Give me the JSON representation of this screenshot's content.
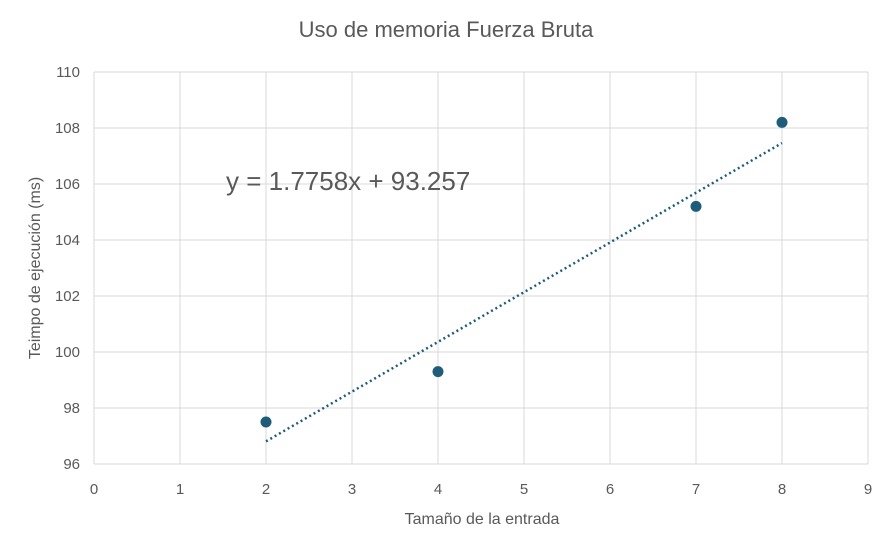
{
  "chart_data": {
    "type": "scatter",
    "title": "Uso de memoria Fuerza Bruta",
    "xlabel": "Tamaño de la entrada",
    "ylabel": "Teimpo de ejecución (ms)",
    "xlim": [
      0,
      9
    ],
    "ylim": [
      96,
      110
    ],
    "x_ticks": [
      "0",
      "1",
      "2",
      "3",
      "4",
      "5",
      "6",
      "7",
      "8",
      "9"
    ],
    "y_ticks": [
      "96",
      "98",
      "100",
      "102",
      "104",
      "106",
      "108",
      "110"
    ],
    "grid": true,
    "points": [
      {
        "x": 2,
        "y": 97.5
      },
      {
        "x": 4,
        "y": 99.3
      },
      {
        "x": 7,
        "y": 105.2
      },
      {
        "x": 8,
        "y": 108.2
      }
    ],
    "trendline": {
      "type": "linear",
      "slope": 1.7758,
      "intercept": 93.257,
      "x_range": [
        2,
        8
      ],
      "equation": "y = 1.7758x + 93.257"
    },
    "colors": {
      "marker": "#1f5c7a",
      "trendline": "#1f5c7a",
      "grid": "#d9d9d9",
      "text": "#595959"
    }
  }
}
